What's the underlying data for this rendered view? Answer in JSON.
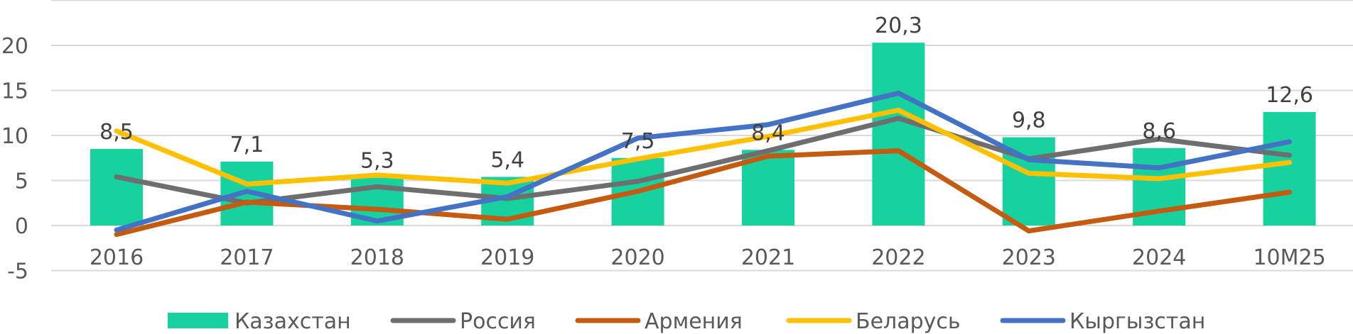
{
  "chart_data": {
    "type": "bar",
    "title": "",
    "xlabel": "",
    "ylabel": "",
    "categories": [
      "2016",
      "2017",
      "2018",
      "2019",
      "2020",
      "2021",
      "2022",
      "2023",
      "2024",
      "10M25"
    ],
    "ylim": [
      -5,
      25
    ],
    "y_ticks": [
      "-5",
      "0",
      "5",
      "10",
      "15",
      "20"
    ],
    "y_tick_values": [
      -5,
      0,
      5,
      10,
      15,
      20
    ],
    "grid": true,
    "legend_position": "bottom",
    "bar_series": {
      "name": "Казахстан",
      "color": "#17D29E",
      "values": [
        8.5,
        7.1,
        5.3,
        5.4,
        7.5,
        8.4,
        20.3,
        9.8,
        8.6,
        12.6
      ],
      "labels": [
        "8,5",
        "7,1",
        "5,3",
        "5,4",
        "7,5",
        "8,4",
        "20,3",
        "9,8",
        "8,6",
        "12,6"
      ]
    },
    "line_series": [
      {
        "name": "Россия",
        "color": "#6E6E6E",
        "values": [
          5.4,
          2.5,
          4.3,
          3.0,
          4.9,
          8.3,
          11.9,
          7.4,
          9.6,
          7.8
        ]
      },
      {
        "name": "Армения",
        "color": "#C55A11",
        "values": [
          -1.0,
          2.6,
          1.8,
          0.7,
          3.8,
          7.7,
          8.3,
          -0.6,
          1.6,
          3.7
        ]
      },
      {
        "name": "Беларусь",
        "color": "#FFC000",
        "values": [
          10.5,
          4.6,
          5.6,
          4.7,
          7.4,
          9.9,
          12.8,
          5.8,
          5.2,
          7.0
        ]
      },
      {
        "name": "Кыргызстан",
        "color": "#4472C4",
        "values": [
          -0.5,
          3.8,
          0.5,
          3.2,
          9.7,
          11.2,
          14.7,
          7.3,
          6.4,
          9.3
        ]
      }
    ]
  }
}
